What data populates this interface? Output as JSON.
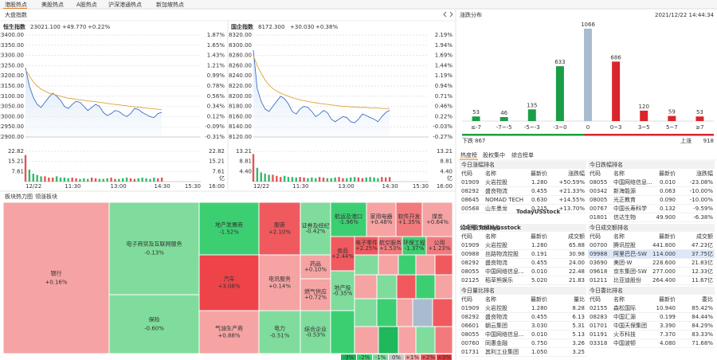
{
  "tabs": [
    "港股热点",
    "美股热点",
    "A股热点",
    "沪深港通热点",
    "新加坡热点"
  ],
  "index_panel": {
    "title": "大盘指数",
    "charts": [
      {
        "name": "恒生指数",
        "price": "23021.100",
        "change": "+49.770",
        "pct": "+0.22%",
        "values": [
          23240,
          23150,
          23095,
          23060,
          23045,
          23070,
          23095,
          23115,
          23100,
          23080,
          23050,
          23040,
          23060,
          23075,
          23070,
          23050,
          23030,
          23045,
          23060,
          23050,
          23020,
          23005,
          23015,
          23030,
          23025,
          23010,
          23000,
          23015,
          23040,
          23035,
          23020,
          23010,
          23000,
          22995,
          23015,
          23021.1
        ],
        "average": [
          23230,
          23200,
          23170,
          23150,
          23135,
          23125,
          23115,
          23110,
          23105,
          23100,
          23095,
          23090,
          23088,
          23085,
          23082,
          23080,
          23077,
          23075,
          23073,
          23070,
          23068,
          23065,
          23062,
          23060,
          23058,
          23055,
          23053,
          23050,
          23048,
          23046,
          23044,
          23042,
          23040,
          23038,
          23036,
          23035
        ],
        "ylim": [
          22900,
          23400
        ],
        "yticks": [
          {
            "value": 23400,
            "label": "23400.00"
          },
          {
            "value": 23350,
            "label": "23350.00"
          },
          {
            "value": 23300,
            "label": "23300.00"
          },
          {
            "value": 23250,
            "label": "23250.00"
          },
          {
            "value": 23200,
            "label": "23200.00"
          },
          {
            "value": 23150,
            "label": "23150.00"
          },
          {
            "value": 23100,
            "label": "23100.00"
          },
          {
            "value": 23050,
            "label": "23050.00"
          },
          {
            "value": 23000,
            "label": "23000.00"
          },
          {
            "value": 22950,
            "label": "22950.00"
          },
          {
            "value": 22900,
            "label": "22900.00"
          }
        ],
        "pct_ticks": [
          "1.87%",
          "1.65%",
          "1.43%",
          "1.21%",
          "0.99%",
          "0.78%",
          "0.56%",
          "0.34%",
          "0.12%",
          "-0.09%",
          "-0.31%"
        ],
        "volume": [
          20,
          9,
          6,
          5,
          4,
          4,
          3,
          3,
          4,
          3,
          3,
          2.5,
          3,
          2.5,
          2,
          2.5,
          2,
          3,
          2.5,
          2,
          2,
          2.5,
          3,
          2,
          2,
          2.5,
          3,
          2.5,
          2,
          2.5,
          3,
          2.5,
          2,
          3,
          2.5,
          3
        ],
        "vlim": [
          0,
          22.82
        ],
        "vticks": [
          22.82,
          15.21,
          7.61
        ],
        "volume_unit": "亿",
        "xticks": [
          "12/22",
          "11:30",
          "13:00",
          "14:30",
          "15:30"
        ],
        "end_label": "16:00",
        "line_color": "#3d6fc4",
        "avg_color": "#e0a235"
      },
      {
        "name": "国企指数",
        "price": "8172.300",
        "change": "+30.030",
        "pct": "+0.38%",
        "values": [
          8290,
          8215,
          8190,
          8175,
          8170,
          8180,
          8190,
          8200,
          8195,
          8185,
          8170,
          8165,
          8175,
          8180,
          8178,
          8170,
          8160,
          8165,
          8172,
          8168,
          8155,
          8150,
          8155,
          8160,
          8158,
          8150,
          8148,
          8155,
          8165,
          8162,
          8158,
          8155,
          8150,
          8160,
          8168,
          8172.3
        ],
        "average": [
          8280,
          8260,
          8245,
          8232,
          8222,
          8215,
          8210,
          8206,
          8203,
          8200,
          8197,
          8195,
          8193,
          8191,
          8190,
          8188,
          8187,
          8186,
          8185,
          8184,
          8183,
          8182,
          8181,
          8180,
          8180,
          8179,
          8179,
          8178,
          8178,
          8178,
          8177,
          8177,
          8177,
          8176,
          8176,
          8176
        ],
        "ylim": [
          8120,
          8320
        ],
        "yticks": [
          {
            "value": 8320,
            "label": "8320.00"
          },
          {
            "value": 8300,
            "label": "8300.00"
          },
          {
            "value": 8280,
            "label": "8280.00"
          },
          {
            "value": 8260,
            "label": "8260.00"
          },
          {
            "value": 8240,
            "label": "8240.00"
          },
          {
            "value": 8220,
            "label": "8220.00"
          },
          {
            "value": 8200,
            "label": "8200.00"
          },
          {
            "value": 8180,
            "label": "8180.00"
          },
          {
            "value": 8160,
            "label": "8160.00"
          },
          {
            "value": 8140,
            "label": "8140.00"
          },
          {
            "value": 8120,
            "label": "8120.00"
          }
        ],
        "pct_ticks": [
          "2.19%",
          "1.94%",
          "1.69%",
          "1.44%",
          "1.19%",
          "0.94%",
          "0.71%",
          "0.46%",
          "0.22%",
          "-0.03%",
          "-0.27%"
        ],
        "volume": [
          12,
          6,
          4,
          3.5,
          3,
          3,
          2.5,
          2,
          2.5,
          2,
          2,
          1.8,
          2,
          1.8,
          1.5,
          1.8,
          1.5,
          2,
          1.8,
          1.5,
          1.5,
          1.8,
          2,
          1.5,
          1.5,
          1.8,
          2,
          1.8,
          1.5,
          1.8,
          2,
          1.8,
          1.5,
          2,
          1.8,
          2
        ],
        "vlim": [
          0,
          13.21
        ],
        "vticks": [
          13.21,
          8.81,
          {
            "value": 4.4,
            "label": "4.40"
          }
        ],
        "volume_unit": "亿",
        "xticks": [
          "12/22",
          "11:30",
          "13:00",
          "14:30",
          "15:30"
        ],
        "end_label": "16:00",
        "line_color": "#3d6fc4",
        "avg_color": "#e0a235"
      }
    ]
  },
  "heatmap": {
    "title": "板块热力图",
    "tab": "领涨板块",
    "cells": [
      {
        "name": "银行",
        "change": "+0.16%",
        "color": "#f5a3a3"
      },
      {
        "name": "电子商贸及互联网服务",
        "change": "-0.13%",
        "color": "#7fdc9c"
      },
      {
        "name": "保险",
        "change": "-0.60%",
        "color": "#7fdc9c"
      },
      {
        "name": "地产发展商",
        "change": "-1.52%",
        "color": "#3ccf72"
      },
      {
        "name": "汽车",
        "change": "+3.08%",
        "color": "#ee4449"
      },
      {
        "name": "气油生产商",
        "change": "+0.88%",
        "color": "#f5a3a3"
      },
      {
        "name": "服装",
        "change": "+2.10%",
        "color": "#f05a5e"
      },
      {
        "name": "电讯服务",
        "change": "+0.14%",
        "color": "#f5a3a3"
      },
      {
        "name": "电力",
        "change": "-0.51%",
        "color": "#7fdc9c"
      },
      {
        "name": "证券及经纪",
        "change": "-0.42%",
        "color": "#7fdc9c"
      },
      {
        "name": "药品",
        "change": "+0.10%",
        "color": "#f5a3a3"
      },
      {
        "name": "燃气供应",
        "change": "+0.72%",
        "color": "#f5a3a3"
      },
      {
        "name": "综合企业",
        "change": "-0.53%",
        "color": "#7fdc9c"
      },
      {
        "name": "航运及港口",
        "change": "-1.96%",
        "color": "#3ccf72"
      },
      {
        "name": "家用电器",
        "change": "+0.48%",
        "color": "#f5a3a3"
      },
      {
        "name": "软件开发",
        "change": "+1.35%",
        "color": "#f27a7d"
      },
      {
        "name": "煤炭",
        "change": "+0.64%",
        "color": "#f5a3a3"
      },
      {
        "name": "食品",
        "change": "+2.44%",
        "color": "#f05a5e"
      },
      {
        "name": "电子零件",
        "change": "+2.25%",
        "color": "#f05a5e"
      },
      {
        "name": "航空服务",
        "change": "+1.53%",
        "color": "#f27a7d"
      },
      {
        "name": "环保工程",
        "change": "-1.37%",
        "color": "#3ccf72"
      },
      {
        "name": "公用",
        "change": "+1.23%",
        "color": "#f27a7d"
      },
      {
        "name": "地产投",
        "change": "-0.35%",
        "color": "#7fdc9c"
      }
    ],
    "legend": [
      "-3%",
      "-2%",
      "-1%",
      "0%",
      "+1%",
      "+2%",
      "+3%"
    ],
    "legend_colors": [
      "#1fb85a",
      "#3ccf72",
      "#7fdc9c",
      "#c8c8c8",
      "#f5a3a3",
      "#f05a5e",
      "#e8353a"
    ]
  },
  "distribution": {
    "title": "涨跌分布",
    "time": "2021/12/22 14:44:34",
    "categories": [
      "≤-7",
      "-7~-5",
      "-5~-3",
      "-3~0",
      "0",
      "0~3",
      "3~5",
      "5~7",
      "≥7"
    ],
    "values": [
      53,
      46,
      135,
      633,
      1066,
      686,
      120,
      59,
      53
    ],
    "colors": [
      "#1b9e45",
      "#1b9e45",
      "#1b9e45",
      "#1b9e45",
      "#a9bccf",
      "#d9262b",
      "#d9262b",
      "#d9262b",
      "#d9262b"
    ],
    "down_label": "下跌",
    "down": 867,
    "up_label": "上涨",
    "up": 918
  },
  "ranking_tabs": [
    "热度榜",
    "股权集中",
    "综合榜单"
  ],
  "tables": [
    {
      "title": "今日涨幅排名",
      "headers": [
        "代码",
        "名称",
        "最新价",
        "涨跌幅"
      ],
      "rows": [
        [
          "01909",
          "火岩控股",
          "1.280",
          "+50.59%"
        ],
        [
          "08292",
          "盛良物流",
          "0.455",
          "+21.33%"
        ],
        [
          "08645",
          "NOMAD TECH",
          "0.630",
          "+14.55%"
        ],
        [
          "00568",
          "山东墨龙",
          "0.215",
          "+13.70%"
        ]
      ],
      "colors": [
        "#e8312f",
        "#e8312f",
        "#e8312f",
        "#e8312f"
      ],
      "color_last": true
    },
    {
      "title": "今日跌幅排名",
      "headers": [
        "代码",
        "名称",
        "最新价",
        "涨跌幅"
      ],
      "rows": [
        [
          "08055",
          "中国网络信息...",
          "0.010",
          "-23.08%"
        ],
        [
          "00342",
          "新海能源",
          "0.063",
          "-10.00%"
        ],
        [
          "08005",
          "光正教育",
          "0.090",
          "-10.00%"
        ],
        [
          "00767",
          "中国长寿科学",
          "0.132",
          "-9.59%"
        ],
        [
          "01801",
          "信达生物",
          "49.900",
          "-6.38%"
        ]
      ],
      "colors": [
        "#1aa34a",
        "#1aa34a",
        "#1aa34a",
        "#1aa34a",
        "#1aa34a"
      ],
      "color_last": true
    },
    {
      "title": "今日成交额排名",
      "headers": [
        "代码",
        "名称",
        "最新价",
        "成交额"
      ],
      "rows": [
        [
          "01909",
          "火岩控股",
          "1.280",
          "65.88"
        ],
        [
          "00988",
          "丝路物流控股",
          "0.191",
          "30.98"
        ],
        [
          "08292",
          "盛良物流",
          "0.455",
          "24.00"
        ],
        [
          "08055",
          "中国网络信息...",
          "0.010",
          "22.48"
        ],
        [
          "02125",
          "稻草熊娱乐",
          "5.020",
          "21.83"
        ]
      ],
      "colors": [
        "#e8312f",
        "#e8312f",
        "#e8312f",
        "#1aa34a",
        "#e8312f"
      ],
      "color_last": false
    },
    {
      "title": "今日成交额排名",
      "headers": [
        "代码",
        "名称",
        "最新价",
        "成交额"
      ],
      "rows": [
        [
          "00700",
          "腾讯控股",
          "441.800",
          "47.23亿"
        ],
        [
          "09988",
          "阿里巴巴-SW",
          "114.000",
          "37.75亿"
        ],
        [
          "03690",
          "美团-W",
          "228.600",
          "21.83亿"
        ],
        [
          "09618",
          "京东集团-SW",
          "277.000",
          "12.33亿"
        ],
        [
          "01211",
          "比亚迪股份",
          "264.400",
          "11.67亿"
        ]
      ],
      "colors": [
        "#e8312f",
        "#e8312f",
        "#1aa34a",
        "#e8312f",
        "#1aa34a"
      ],
      "color_last": false,
      "highlight": 1
    },
    {
      "title": "今日量比排名",
      "headers": [
        "代码",
        "名称",
        "最新价",
        "量比"
      ],
      "rows": [
        [
          "01909",
          "火岩控股",
          "1.280",
          "8.28"
        ],
        [
          "08292",
          "盛良物流",
          "0.455",
          "6.13"
        ],
        [
          "06601",
          "朝云集团",
          "3.030",
          "5.31"
        ],
        [
          "08055",
          "中国网络信息...",
          "0.010",
          "5.13"
        ],
        [
          "00760",
          "同惠金融",
          "0.750",
          "3.26"
        ],
        [
          "01731",
          "其利工业集团",
          "1.050",
          "3.25"
        ]
      ],
      "colors": [
        "#e8312f",
        "#e8312f",
        "#e8312f",
        "#1aa34a",
        "#e8312f",
        "#e8312f"
      ],
      "color_last": false
    },
    {
      "title": "今日委比排名",
      "headers": [
        "代码",
        "名称",
        "最新价",
        "委比"
      ],
      "rows": [
        [
          "02155",
          "森松国际",
          "10.940",
          "85.42%"
        ],
        [
          "08283",
          "中国汇源",
          "0.199",
          "84.44%"
        ],
        [
          "01701",
          "中国天保集团",
          "3.390",
          "84.29%"
        ],
        [
          "01191",
          "火币科技",
          "7.370",
          "83.33%"
        ],
        [
          "03318",
          "中国波顿",
          "4.080",
          "71.68%"
        ]
      ],
      "colors": [
        "#e8312f",
        "#1aa34a",
        "#e8312f",
        "#e8312f",
        "#e8312f"
      ],
      "color_last": false
    }
  ],
  "watermark": {
    "small": "TodayUSStock",
    "large": "公众号:Todayusstock"
  }
}
